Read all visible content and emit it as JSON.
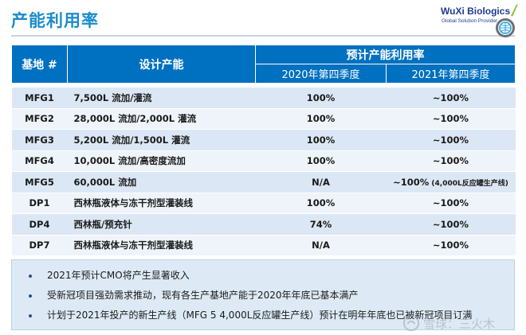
{
  "header": {
    "title": "产能利用率",
    "logo_name": "WuXi Biologics",
    "logo_tagline": "Global Solution Provider"
  },
  "table": {
    "col_site": "基地 #",
    "col_design": "设计产能",
    "col_group": "预计产能利用率",
    "col_q4_2020": "2020年第四季度",
    "col_q4_2021": "2021年第四季度",
    "rows": [
      {
        "site": "MFG1",
        "design": "7,500L 流加/灌流",
        "q4_2020": "100%",
        "q4_2021": "~100%",
        "q4_2021_note": ""
      },
      {
        "site": "MFG2",
        "design": "28,000L 流加/2,000L 灌流",
        "q4_2020": "100%",
        "q4_2021": "~100%",
        "q4_2021_note": ""
      },
      {
        "site": "MFG3",
        "design": "5,200L 流加/1,500L 灌流",
        "q4_2020": "100%",
        "q4_2021": "~100%",
        "q4_2021_note": ""
      },
      {
        "site": "MFG4",
        "design": "10,000L 流加/高密度流加",
        "q4_2020": "100%",
        "q4_2021": "~100%",
        "q4_2021_note": ""
      },
      {
        "site": "MFG5",
        "design": "60,000L 流加",
        "q4_2020": "N/A",
        "q4_2021": "~100%",
        "q4_2021_note": " (4,000L反应罐生产线)"
      },
      {
        "site": "DP1",
        "design": "西林瓶液体与冻干剂型灌装线",
        "q4_2020": "100%",
        "q4_2021": "~100%",
        "q4_2021_note": ""
      },
      {
        "site": "DP4",
        "design": "西林瓶/预充针",
        "q4_2020": "74%",
        "q4_2021": "~100%",
        "q4_2021_note": ""
      },
      {
        "site": "DP7",
        "design": "西林瓶液体与冻干剂型灌装线",
        "q4_2020": "N/A",
        "q4_2021": "~100%",
        "q4_2021_note": ""
      }
    ]
  },
  "notes": [
    "2021年预计CMO将产生显著收入",
    "受新冠项目强劲需求推动，现有各生产基地产能于2020年年底已基本满产",
    "计划于2021年投产的新生产线（MFG 5 4,000L反应罐生产线）预计在明年年底也已被新冠项目订满"
  ],
  "watermark_text": "雪球：三火木",
  "colors": {
    "title": "#1a8ccc",
    "header_bg": "#0070c0",
    "row_odd": "#dbe7f4",
    "row_even": "#eef4fa",
    "notes_bg": "#ddeaf6"
  },
  "icons": {
    "logo_mark": "globe-in-circle-icon",
    "bullet": "bullet-dot-icon",
    "watermark": "snowball-watermark-icon"
  }
}
